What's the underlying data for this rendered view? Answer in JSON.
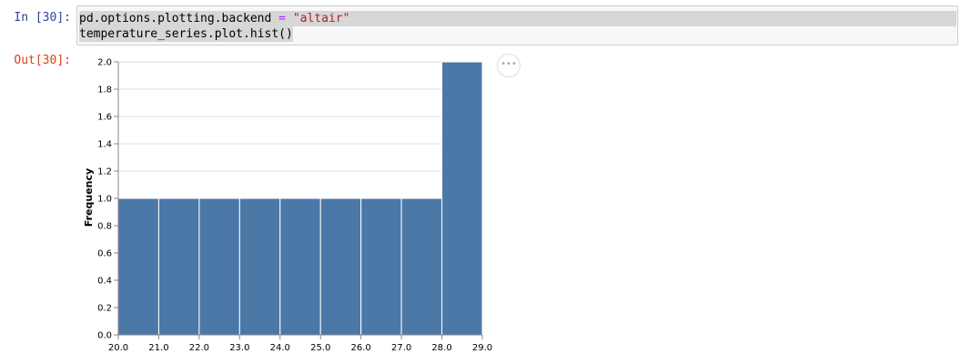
{
  "cell": {
    "input_prompt": "In [30]:",
    "output_prompt": "Out[30]:",
    "code": {
      "line1": {
        "a": "pd.options.plotting.backend ",
        "op": "=",
        "b": " ",
        "str": "\"altair\""
      },
      "line2": "temperature_series.plot.hist()"
    }
  },
  "actions_button": {
    "icon": "ellipsis-icon",
    "label": "•••"
  },
  "chart_data": {
    "type": "bar",
    "title": "",
    "xlabel": "",
    "ylabel": "Frequency",
    "bin_edges": [
      20.0,
      21.0,
      22.0,
      23.0,
      24.0,
      25.0,
      26.0,
      27.0,
      28.0,
      29.0
    ],
    "values": [
      1,
      1,
      1,
      1,
      1,
      1,
      1,
      1,
      2
    ],
    "ylim": [
      0,
      2.0
    ],
    "yticks": [
      "0.0",
      "0.2",
      "0.4",
      "0.6",
      "0.8",
      "1.0",
      "1.2",
      "1.4",
      "1.6",
      "1.8",
      "2.0"
    ],
    "xticks": [
      "20.0",
      "21.0",
      "22.0",
      "23.0",
      "24.0",
      "25.0",
      "26.0",
      "27.0",
      "28.0",
      "29.0"
    ],
    "bar_color": "#4c78a8",
    "grid": true,
    "legend": "none"
  }
}
